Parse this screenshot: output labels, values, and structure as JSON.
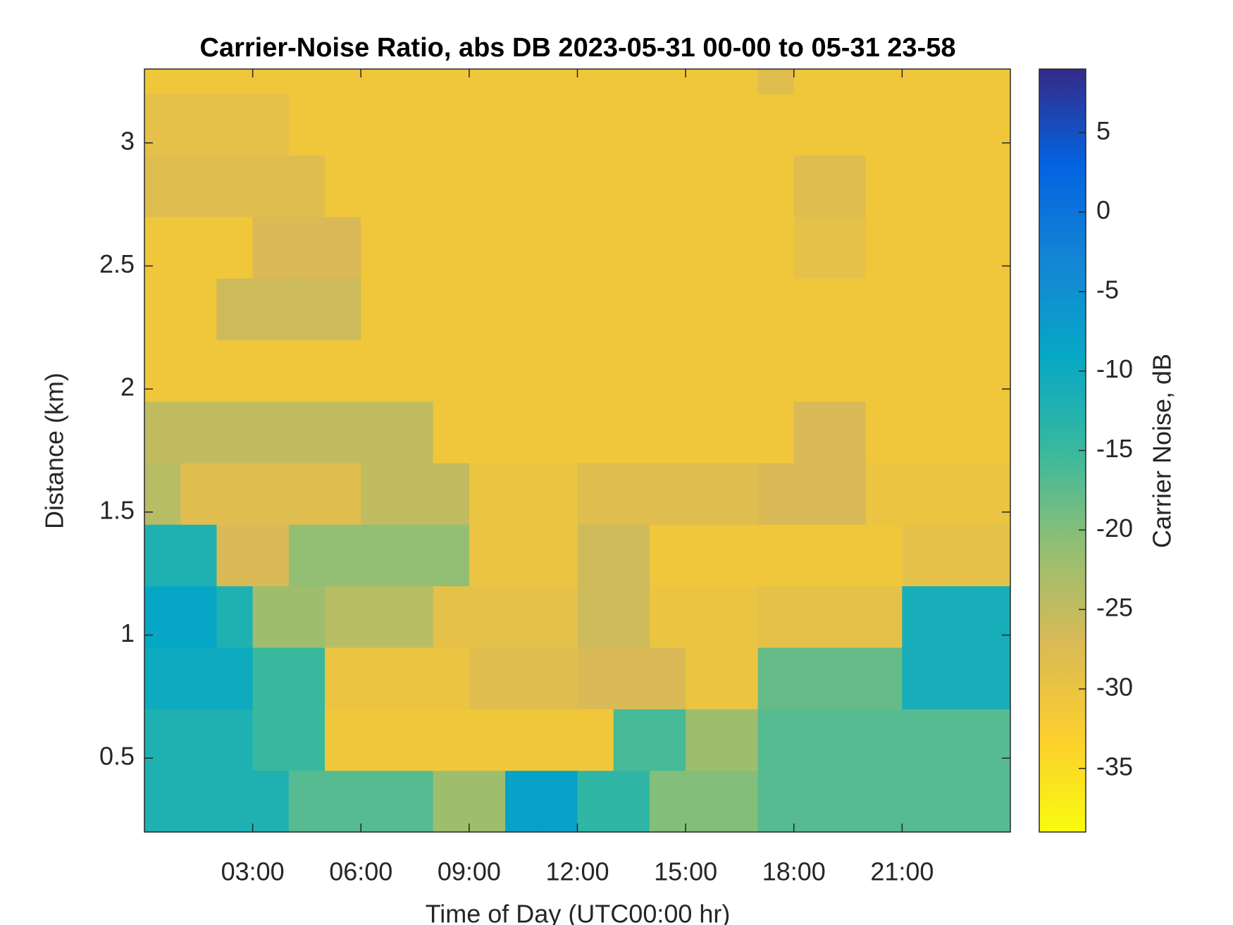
{
  "chart_data": {
    "type": "heatmap",
    "title": "Carrier-Noise Ratio, abs DB 2023-05-31 00-00 to 05-31 23-58",
    "xlabel": "Time of Day (UTC00:00 hr)",
    "ylabel": "Distance (km)",
    "colorbar_label": "Carrier Noise, dB",
    "xlim": [
      0,
      24
    ],
    "ylim": [
      0.2,
      3.3
    ],
    "clim": [
      -39,
      9
    ],
    "xticks": [
      {
        "value": 3,
        "label": "03:00"
      },
      {
        "value": 6,
        "label": "06:00"
      },
      {
        "value": 9,
        "label": "09:00"
      },
      {
        "value": 12,
        "label": "12:00"
      },
      {
        "value": 15,
        "label": "15:00"
      },
      {
        "value": 18,
        "label": "18:00"
      },
      {
        "value": 21,
        "label": "21:00"
      }
    ],
    "yticks": [
      0.5,
      1,
      1.5,
      2,
      2.5,
      3
    ],
    "cticks": [
      -35,
      -30,
      -25,
      -20,
      -15,
      -10,
      -5,
      0,
      5
    ],
    "colormap": [
      "#f9fb0e",
      "#fcce2e",
      "#d9ba56",
      "#92bf73",
      "#38b99e",
      "#06a7c6",
      "#1485d4",
      "#0363e1",
      "#352a87"
    ],
    "x_edges": [
      0,
      1,
      2,
      3,
      4,
      5,
      6,
      7,
      8,
      9,
      10,
      11,
      12,
      13,
      14,
      15,
      16,
      17,
      18,
      19,
      20,
      21,
      22,
      23,
      24
    ],
    "y_edges": [
      0.2,
      0.45,
      0.7,
      0.95,
      1.2,
      1.45,
      1.7,
      1.95,
      2.2,
      2.45,
      2.7,
      2.95,
      3.2,
      3.3
    ],
    "z": [
      [
        -12,
        -12,
        -12,
        -12,
        -17,
        -17,
        -17,
        -17,
        -22,
        -22,
        -8,
        -8,
        -14,
        -14,
        -20,
        -20,
        -20,
        -17,
        -17,
        -17,
        -17,
        -17,
        -17,
        -17
      ],
      [
        -12,
        -12,
        -12,
        -15,
        -15,
        -31,
        -31,
        -31,
        -31,
        -31,
        -31,
        -31,
        -31,
        -16,
        -16,
        -22,
        -22,
        -17,
        -17,
        -17,
        -17,
        -17,
        -17,
        -17
      ],
      [
        -10,
        -10,
        -10,
        -15,
        -15,
        -30,
        -30,
        -30,
        -30,
        -28,
        -28,
        -28,
        -27,
        -27,
        -27,
        -30,
        -30,
        -18,
        -18,
        -18,
        -18,
        -11,
        -11,
        -11
      ],
      [
        -9,
        -9,
        -12,
        -22,
        -22,
        -24,
        -24,
        -24,
        -29,
        -29,
        -29,
        -29,
        -26,
        -26,
        -30,
        -30,
        -30,
        -29,
        -29,
        -29,
        -29,
        -11,
        -11,
        -11
      ],
      [
        -12,
        -12,
        -27,
        -27,
        -21,
        -21,
        -21,
        -21,
        -21,
        -30,
        -30,
        -30,
        -26,
        -26,
        -31,
        -31,
        -31,
        -31,
        -31,
        -31,
        -31,
        -29,
        -29,
        -29
      ],
      [
        -24,
        -28,
        -28,
        -28,
        -28,
        -28,
        -25,
        -25,
        -25,
        -30,
        -30,
        -30,
        -28,
        -28,
        -28,
        -28,
        -28,
        -27,
        -27,
        -27,
        -30,
        -30,
        -30,
        -30
      ],
      [
        -25,
        -25,
        -25,
        -25,
        -25,
        -25,
        -25,
        -25,
        -31,
        -31,
        -31,
        -31,
        -31,
        -31,
        -31,
        -31,
        -31,
        -31,
        -27,
        -27,
        -31,
        -31,
        -31,
        -31
      ],
      [
        -31,
        -31,
        -31,
        -31,
        -31,
        -31,
        -31,
        -31,
        -31,
        -31,
        -31,
        -31,
        -31,
        -31,
        -31,
        -31,
        -31,
        -31,
        -31,
        -31,
        -31,
        -31,
        -31,
        -31
      ],
      [
        -31,
        -31,
        -26,
        -26,
        -26,
        -26,
        -31,
        -31,
        -31,
        -31,
        -31,
        -31,
        -31,
        -31,
        -31,
        -31,
        -31,
        -31,
        -31,
        -31,
        -31,
        -31,
        -31,
        -31
      ],
      [
        -31,
        -31,
        -31,
        -27,
        -27,
        -27,
        -31,
        -31,
        -31,
        -31,
        -31,
        -31,
        -31,
        -31,
        -31,
        -31,
        -31,
        -31,
        -29,
        -29,
        -31,
        -31,
        -31,
        -31
      ],
      [
        -28,
        -28,
        -28,
        -28,
        -28,
        -31,
        -31,
        -31,
        -31,
        -31,
        -31,
        -31,
        -31,
        -31,
        -31,
        -31,
        -31,
        -31,
        -28,
        -28,
        -31,
        -31,
        -31,
        -31
      ],
      [
        -29,
        -29,
        -29,
        -29,
        -31,
        -31,
        -31,
        -31,
        -31,
        -31,
        -31,
        -31,
        -31,
        -31,
        -31,
        -31,
        -31,
        -31,
        -31,
        -31,
        -31,
        -31,
        -31,
        -31
      ],
      [
        -31,
        -31,
        -31,
        -31,
        -31,
        -31,
        -31,
        -31,
        -31,
        -31,
        -31,
        -31,
        -31,
        -31,
        -31,
        -31,
        -31,
        -28,
        -31,
        -31,
        -31,
        -31,
        -31,
        -31
      ]
    ]
  }
}
